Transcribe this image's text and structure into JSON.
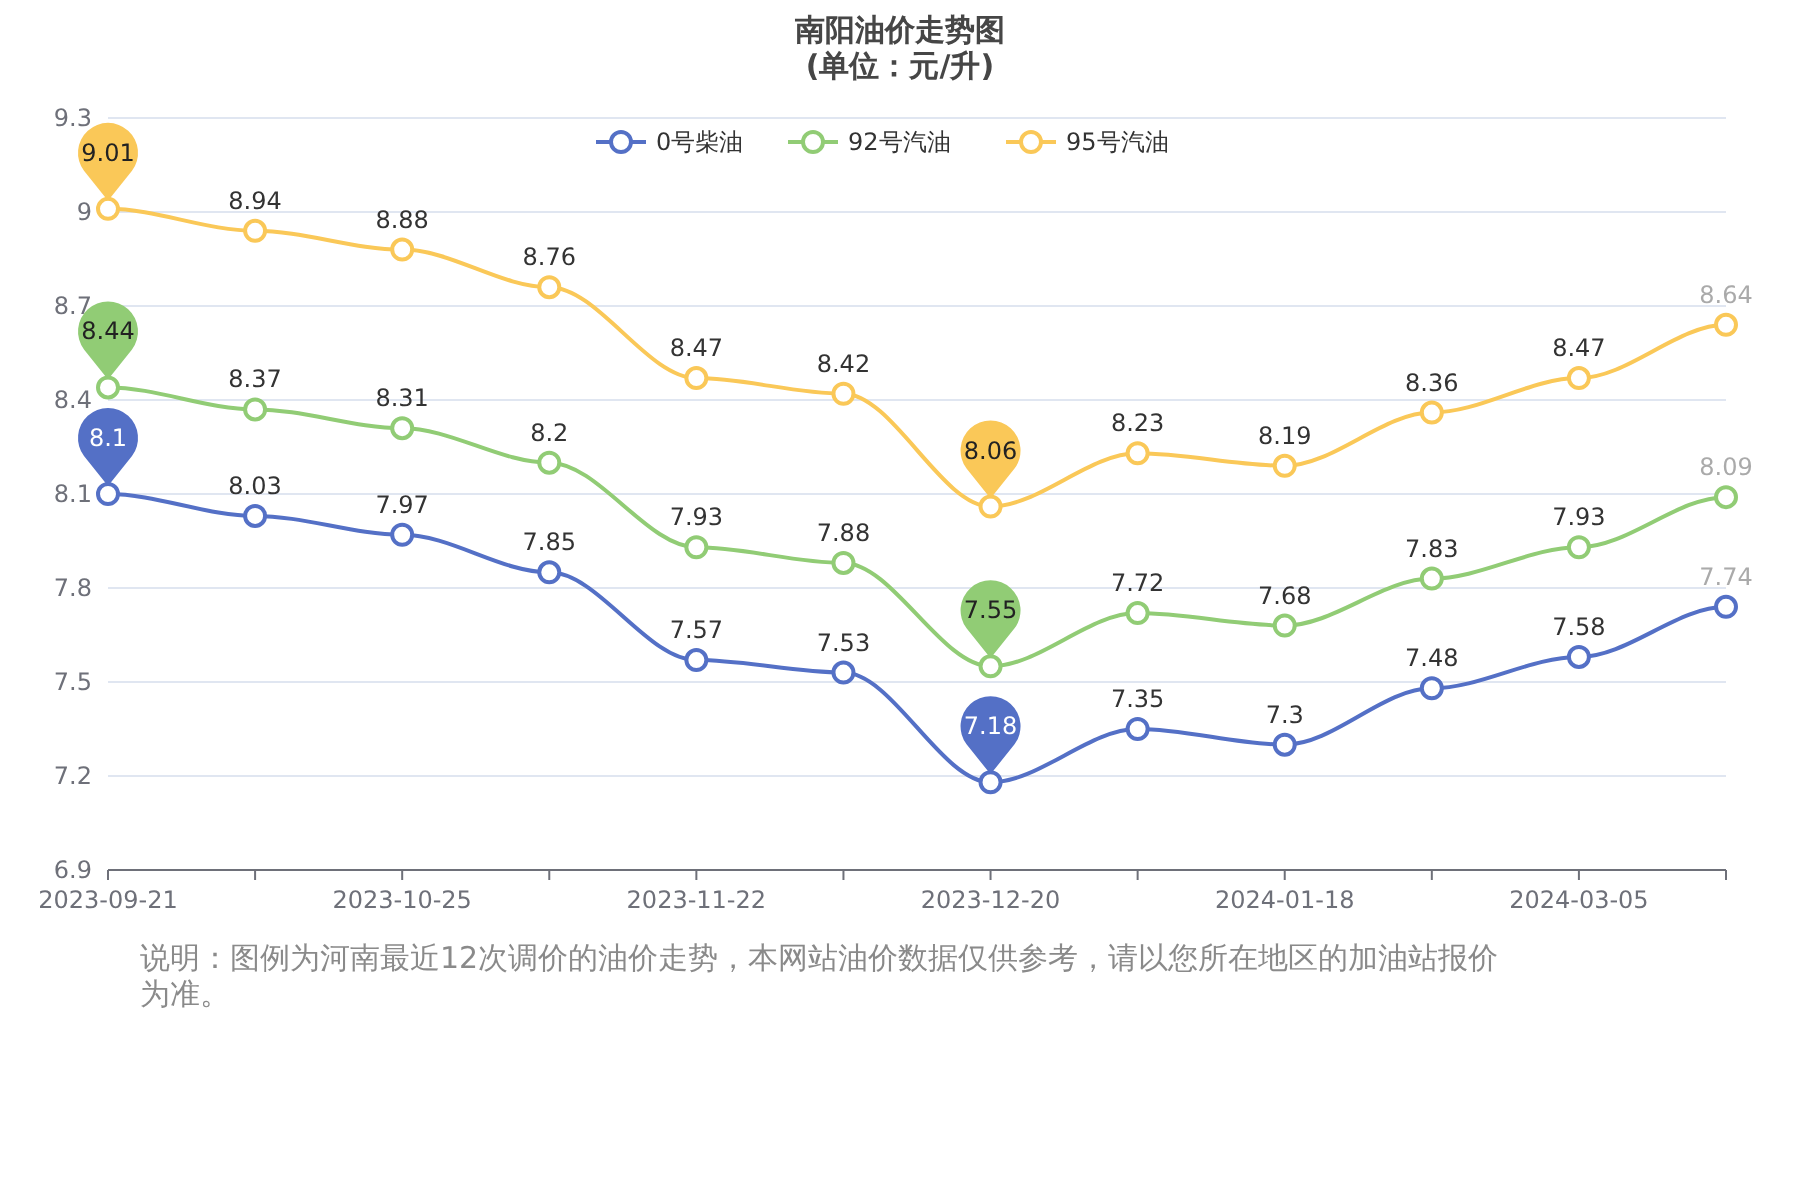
{
  "chart_data": {
    "type": "line",
    "title": "南阳油价走势图",
    "subtitle": "(单位：元/升)",
    "categories": [
      "2023-09-21",
      null,
      "2023-10-25",
      null,
      "2023-11-22",
      null,
      "2023-12-20",
      null,
      "2024-01-18",
      null,
      "2024-03-05",
      null
    ],
    "series": [
      {
        "name": "0号柴油",
        "color": "#5470c6",
        "values": [
          8.1,
          8.03,
          7.97,
          7.85,
          7.57,
          7.53,
          7.18,
          7.35,
          7.3,
          7.48,
          7.58,
          7.74
        ]
      },
      {
        "name": "92号汽油",
        "color": "#91cc75",
        "values": [
          8.44,
          8.37,
          8.31,
          8.2,
          7.93,
          7.88,
          7.55,
          7.72,
          7.68,
          7.83,
          7.93,
          8.09
        ]
      },
      {
        "name": "95号汽油",
        "color": "#fac858",
        "values": [
          9.01,
          8.94,
          8.88,
          8.76,
          8.47,
          8.42,
          8.06,
          8.23,
          8.19,
          8.36,
          8.47,
          8.64
        ]
      }
    ],
    "ylim": [
      6.9,
      9.3
    ],
    "yticks": [
      6.9,
      7.2,
      7.5,
      7.8,
      8.1,
      8.4,
      8.7,
      9,
      9.3
    ],
    "grid": "y",
    "legend": "top",
    "marker": "circle",
    "line_style": "solid",
    "data_labels": true,
    "annotations": [
      "说明：图例为河南最近12次调价的油价走势，本网站油价数据仅供参考，请以您所在地区的加油站报价为准。"
    ]
  }
}
